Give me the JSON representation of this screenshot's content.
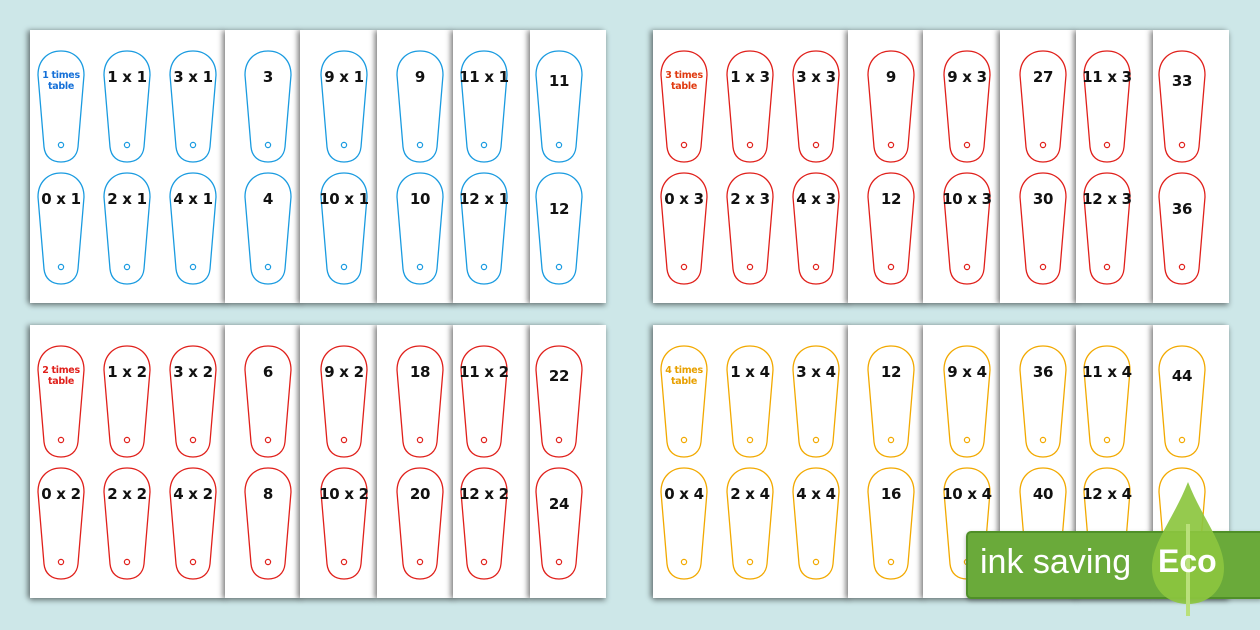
{
  "panels": [
    {
      "color": "#1a9be0",
      "title_color": "#1570d8",
      "top": [
        "1 times table",
        "1 x 1",
        "3 x 1",
        "3",
        "9 x 1",
        "9",
        "11 x 1",
        "11"
      ],
      "bottom": [
        "0 x 1",
        "2 x 1",
        "4 x 1",
        "4",
        "10 x 1",
        "10",
        "12 x 1",
        "12"
      ]
    },
    {
      "color": "#e0201b",
      "title_color": "#e03a10",
      "top": [
        "3 times table",
        "1 x 3",
        "3 x 3",
        "9",
        "9 x 3",
        "27",
        "11 x 3",
        "33"
      ],
      "bottom": [
        "0 x 3",
        "2 x 3",
        "4 x 3",
        "12",
        "10 x 3",
        "30",
        "12 x 3",
        "36"
      ]
    },
    {
      "color": "#e0201b",
      "title_color": "#e0201b",
      "top": [
        "2 times table",
        "1 x 2",
        "3 x 2",
        "6",
        "9 x 2",
        "18",
        "11 x 2",
        "22"
      ],
      "bottom": [
        "0 x 2",
        "2 x 2",
        "4 x 2",
        "8",
        "10 x 2",
        "20",
        "12 x 2",
        "24"
      ]
    },
    {
      "color": "#f2a900",
      "title_color": "#e8a000",
      "top": [
        "4 times table",
        "1 x 4",
        "3 x 4",
        "12",
        "9 x 4",
        "36",
        "11 x 4",
        "44"
      ],
      "bottom": [
        "0 x 4",
        "2 x 4",
        "4 x 4",
        "16",
        "10 x 4",
        "40",
        "12 x 4",
        ""
      ]
    }
  ],
  "badge": {
    "text": "ink saving",
    "eco": "Eco",
    "green": "#6aaa3a",
    "leaf": "#8cc63f"
  }
}
